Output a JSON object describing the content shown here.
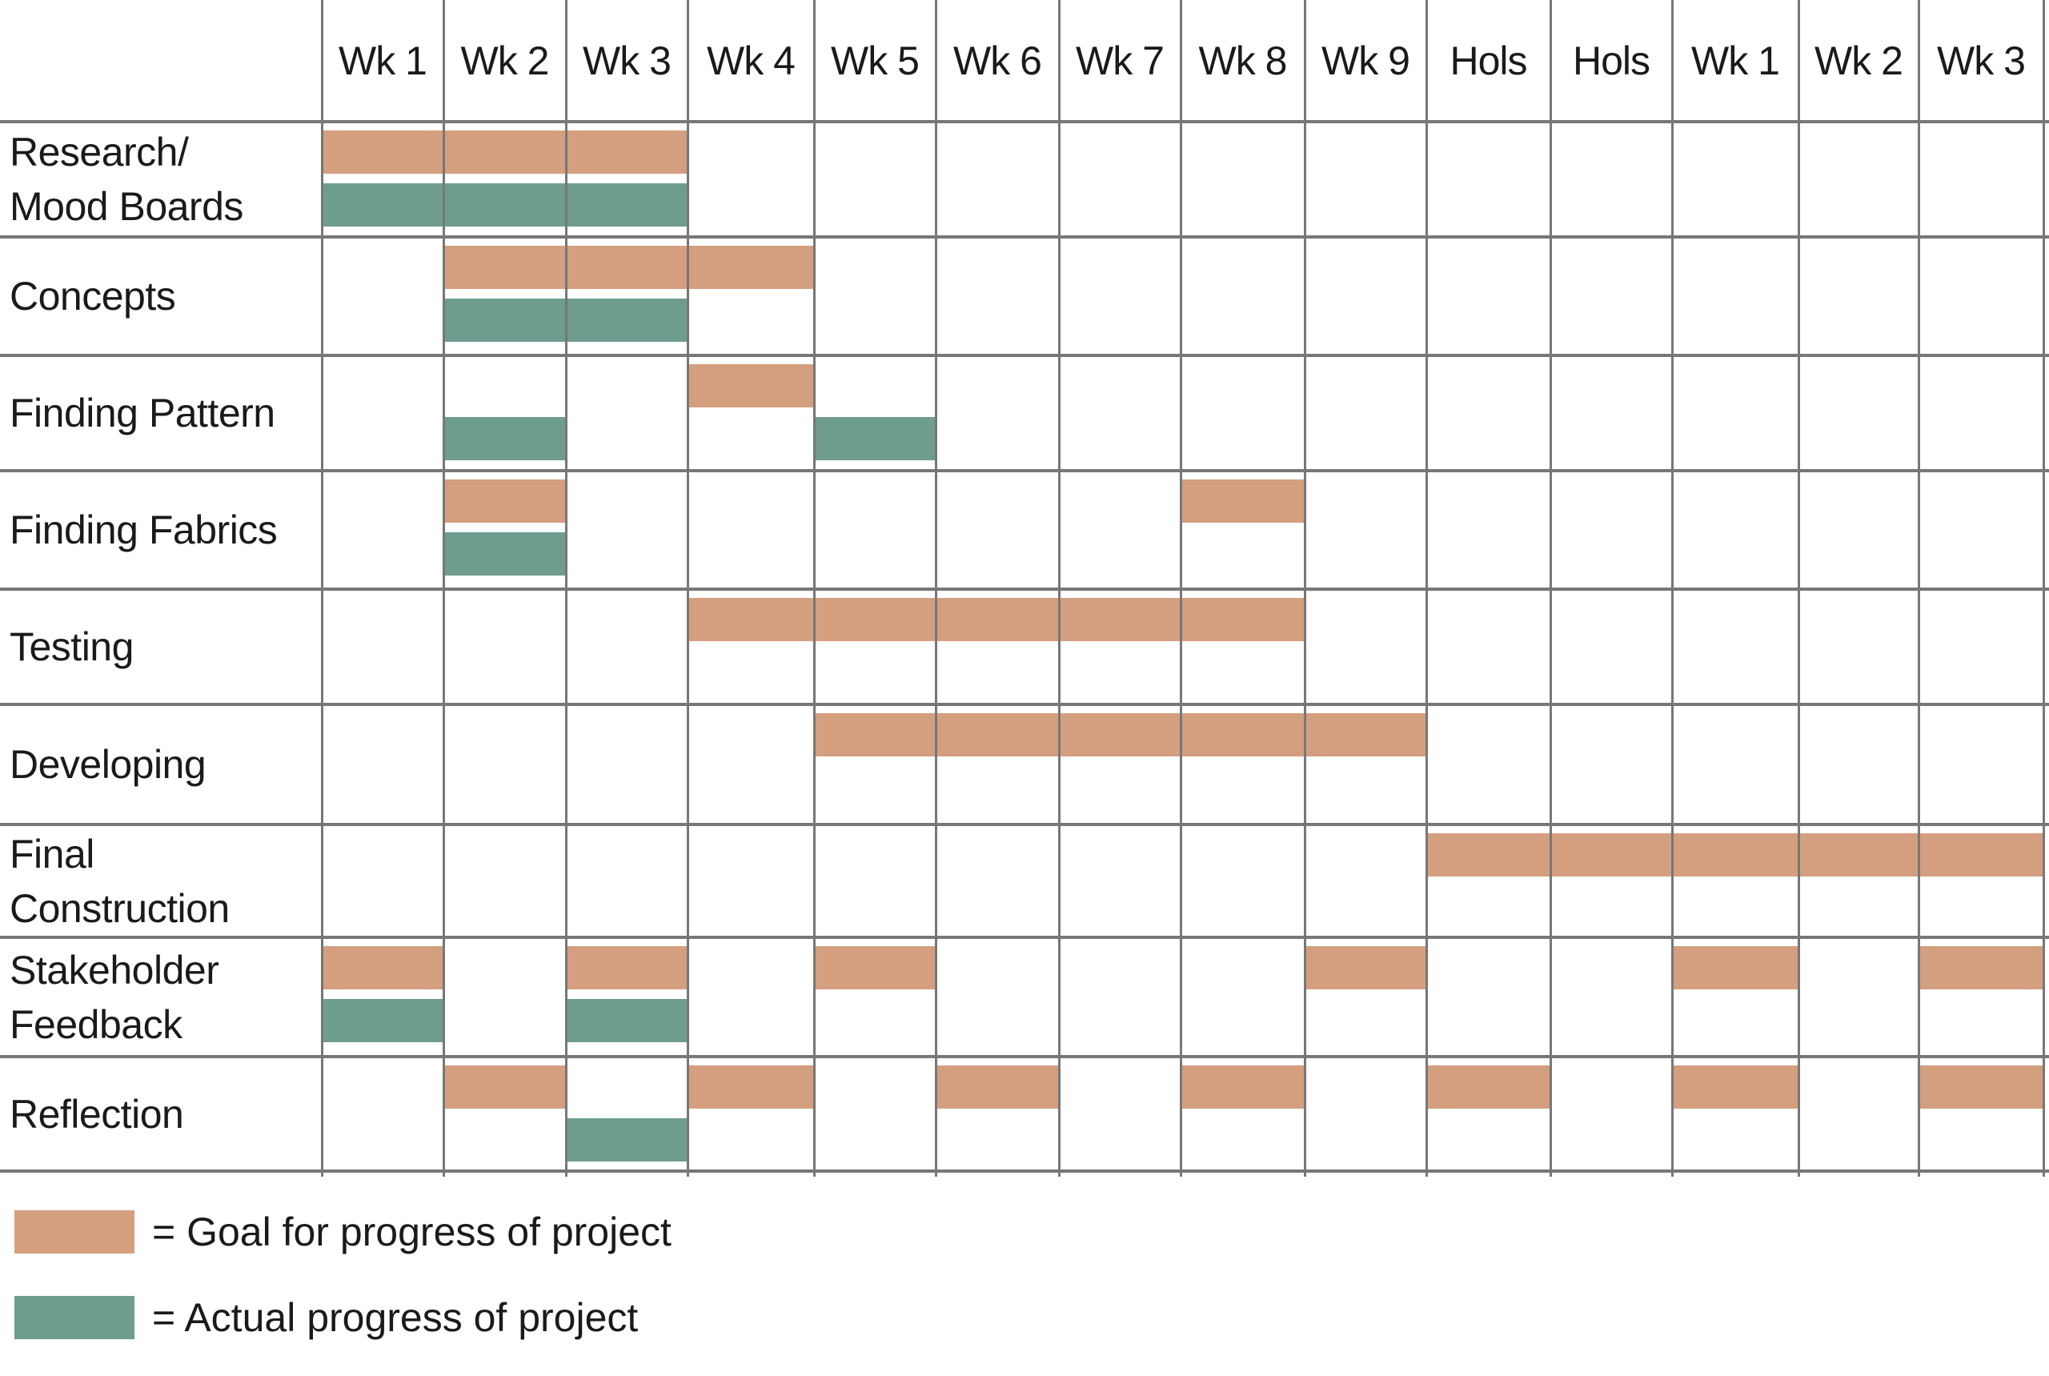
{
  "chart_data": {
    "type": "gantt",
    "columns": [
      "Wk 1",
      "Wk 2",
      "Wk 3",
      "Wk 4",
      "Wk 5",
      "Wk 6",
      "Wk 7",
      "Wk 8",
      "Wk 9",
      "Hols",
      "Hols",
      "Wk 1",
      "Wk 2",
      "Wk 3"
    ],
    "colors": {
      "goal": "#d49f7e",
      "actual": "#6e9c8f",
      "grid": "#777777"
    },
    "tasks": [
      {
        "label": "Research/\nMood Boards",
        "goal": [
          0,
          1,
          2
        ],
        "actual": [
          0,
          1,
          2
        ]
      },
      {
        "label": "Concepts",
        "goal": [
          1,
          2,
          3
        ],
        "actual": [
          1,
          2
        ]
      },
      {
        "label": "Finding Pattern",
        "goal": [
          3
        ],
        "actual": [
          1,
          4
        ]
      },
      {
        "label": "Finding Fabrics",
        "goal": [
          1,
          7
        ],
        "actual": [
          1
        ]
      },
      {
        "label": "Testing",
        "goal": [
          3,
          4,
          5,
          6,
          7
        ],
        "actual": []
      },
      {
        "label": "Developing",
        "goal": [
          4,
          5,
          6,
          7,
          8
        ],
        "actual": []
      },
      {
        "label": "Final\nConstruction",
        "goal": [
          9,
          10,
          11,
          12,
          13
        ],
        "actual": []
      },
      {
        "label": "Stakeholder\nFeedback",
        "goal": [
          0,
          2,
          4,
          8,
          11,
          13
        ],
        "actual": [
          0,
          2
        ]
      },
      {
        "label": "Reflection",
        "goal": [
          1,
          3,
          5,
          7,
          9,
          11,
          13
        ],
        "actual": [
          2
        ]
      }
    ],
    "legend": [
      {
        "key": "goal",
        "text": "= Goal for progress of project"
      },
      {
        "key": "actual",
        "text": "= Actual progress of project"
      }
    ]
  }
}
